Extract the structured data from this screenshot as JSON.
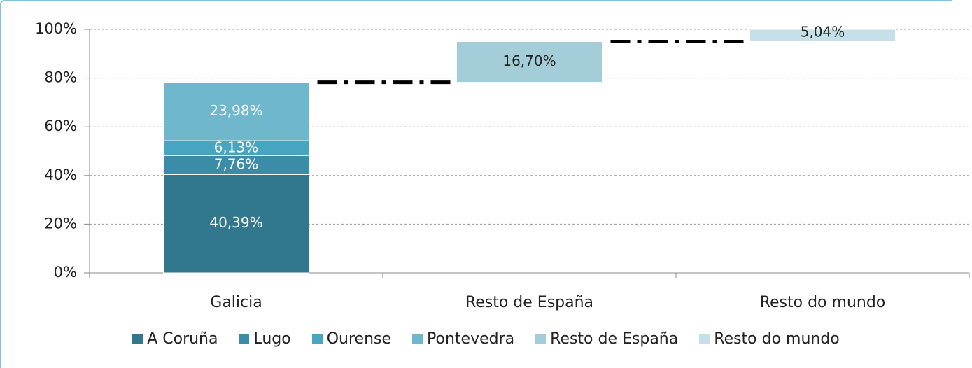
{
  "chart_data": {
    "type": "waterfall",
    "categories": [
      "Galicia",
      "Resto de España",
      "Resto do mundo"
    ],
    "series": [
      {
        "name": "A Coruña",
        "color": "#31788f",
        "label_color": "#ffffff",
        "values": [
          40.39,
          null,
          null
        ],
        "value_labels": [
          "40,39%",
          null,
          null
        ]
      },
      {
        "name": "Lugo",
        "color": "#3a8ca8",
        "label_color": "#ffffff",
        "values": [
          7.76,
          null,
          null
        ],
        "value_labels": [
          "7,76%",
          null,
          null
        ]
      },
      {
        "name": "Ourense",
        "color": "#48a5c1",
        "label_color": "#ffffff",
        "values": [
          6.13,
          null,
          null
        ],
        "value_labels": [
          "6,13%",
          null,
          null
        ]
      },
      {
        "name": "Pontevedra",
        "color": "#6fb7cc",
        "label_color": "#ffffff",
        "values": [
          23.98,
          null,
          null
        ],
        "value_labels": [
          "23,98%",
          null,
          null
        ]
      },
      {
        "name": "Resto de España",
        "color": "#a2cdd9",
        "label_color": "#222222",
        "values": [
          null,
          16.7,
          null
        ],
        "value_labels": [
          null,
          "16,70%",
          null
        ]
      },
      {
        "name": "Resto do mundo",
        "color": "#c5e0e8",
        "label_color": "#222222",
        "values": [
          null,
          null,
          5.04
        ],
        "value_labels": [
          null,
          null,
          "5,04%"
        ]
      }
    ],
    "ylim": [
      0,
      100
    ],
    "yticks": [
      {
        "value": 0,
        "label": "0%"
      },
      {
        "value": 20,
        "label": "20%"
      },
      {
        "value": 40,
        "label": "40%"
      },
      {
        "value": 60,
        "label": "60%"
      },
      {
        "value": 80,
        "label": "80%"
      },
      {
        "value": 100,
        "label": "100%"
      }
    ],
    "grid": true,
    "legend": "bottom"
  }
}
